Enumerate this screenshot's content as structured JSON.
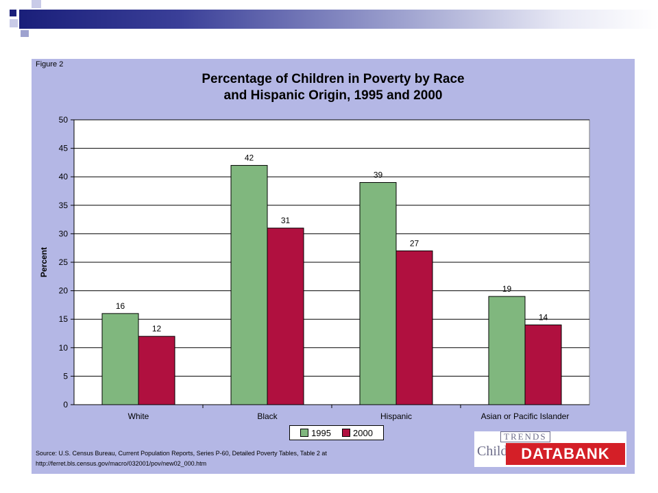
{
  "figure": {
    "label": "Figure 2",
    "title_line1": "Percentage of Children in Poverty by Race",
    "title_line2": "and Hispanic Origin, 1995 and 2000",
    "source_line1": "Source: U.S. Census Bureau, Current Population Reports, Series P-60, Detailed Poverty Tables, Table 2 at",
    "source_line2": "http://ferret.bls.census.gov/macro/032001/pov/new02_000.htm"
  },
  "logo": {
    "child_text": "Child",
    "trends_text": "TRENDS",
    "databank_text": "DATABANK"
  },
  "colors": {
    "slide_accent": "#1a1f7a",
    "panel_background": "#b4b7e5",
    "series_1995": "#80b77e",
    "series_2000": "#b0103f",
    "logo_red": "#d41f27"
  },
  "chart_data": {
    "type": "bar",
    "title": "Percentage of Children in Poverty by Race and Hispanic Origin, 1995 and 2000",
    "categories": [
      "White",
      "Black",
      "Hispanic",
      "Asian or Pacific Islander"
    ],
    "series": [
      {
        "name": "1995",
        "values": [
          16,
          42,
          39,
          19
        ],
        "color": "#80b77e"
      },
      {
        "name": "2000",
        "values": [
          12,
          31,
          27,
          14
        ],
        "color": "#b0103f"
      }
    ],
    "xlabel": "",
    "ylabel": "Percent",
    "ylim": [
      0,
      50
    ],
    "yticks": [
      0,
      5,
      10,
      15,
      20,
      25,
      30,
      35,
      40,
      45,
      50
    ],
    "grid": true,
    "legend_position": "bottom-center"
  }
}
